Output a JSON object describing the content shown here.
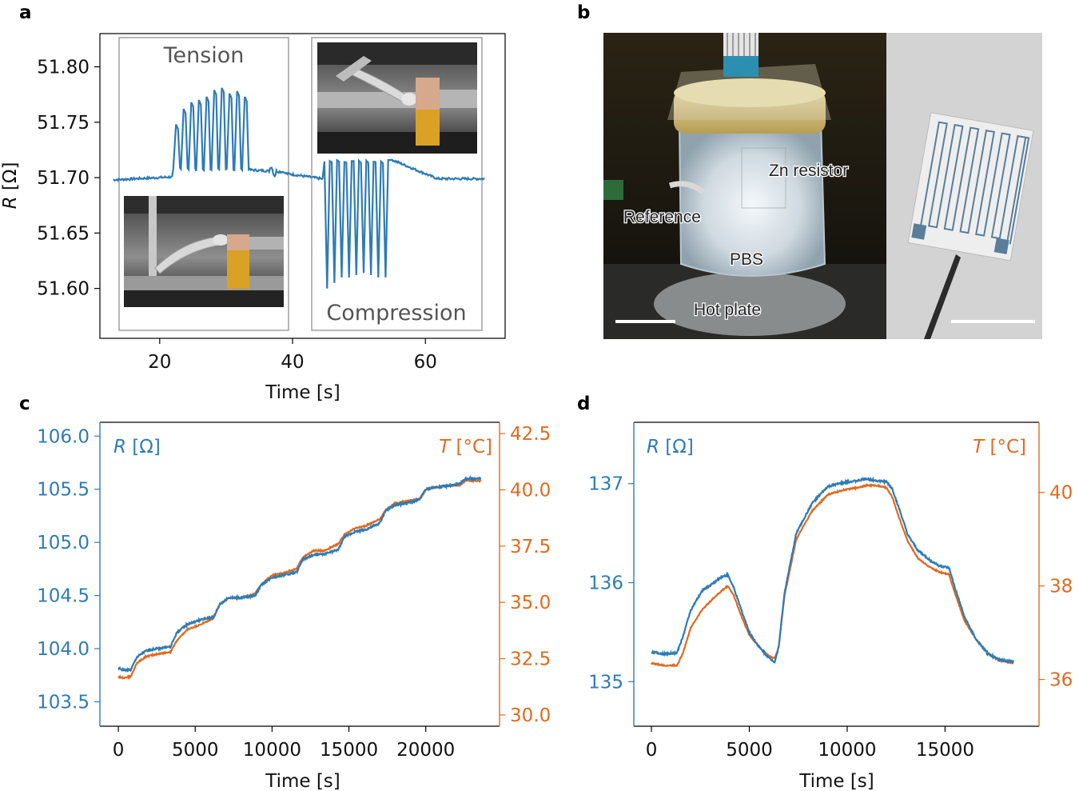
{
  "colors": {
    "blue": "#2f7bb5",
    "orange": "#e06a20",
    "axis": "#000000"
  },
  "panels": {
    "a": {
      "label": "a"
    },
    "b": {
      "label": "b",
      "labels": [
        "Zn resistor",
        "Reference",
        "PBS",
        "Hot plate"
      ]
    },
    "c": {
      "label": "c"
    },
    "d": {
      "label": "d"
    }
  },
  "chart_data": [
    {
      "panel": "a",
      "type": "line",
      "xlabel": "Time [s]",
      "ylabel_italic": "R",
      "ylabel_unit": " [Ω]",
      "xlim": [
        11,
        72
      ],
      "ylim": [
        51.555,
        51.83
      ],
      "xticks": [
        20,
        40,
        60
      ],
      "yticks": [
        51.6,
        51.65,
        51.7,
        51.75,
        51.8
      ],
      "ytick_labels": [
        "51.60",
        "51.65",
        "51.70",
        "51.75",
        "51.80"
      ],
      "annotations": [
        "Tension",
        "Compression"
      ],
      "series": [
        {
          "color": "#2f7bb5",
          "tension_peaks": [
            51.748,
            51.762,
            51.768,
            51.77,
            51.773,
            51.779,
            51.781,
            51.776,
            51.778,
            51.773
          ],
          "compression_troughs": [
            51.6,
            51.605,
            51.61,
            51.61,
            51.612,
            51.614,
            51.612,
            51.61,
            51.61
          ]
        }
      ]
    },
    {
      "panel": "c",
      "type": "line",
      "xlabel": "Time [s]",
      "xlim": [
        -1200,
        24800
      ],
      "xticks": [
        0,
        5000,
        10000,
        15000,
        20000
      ],
      "ylim": [
        103.27,
        106.13
      ],
      "yticks": [
        103.5,
        104.0,
        104.5,
        105.0,
        105.5,
        106.0
      ],
      "ytick_labels": [
        "103.5",
        "104.0",
        "104.5",
        "105.0",
        "105.5",
        "106.0"
      ],
      "y2lim": [
        29.5,
        43.0
      ],
      "y2ticks": [
        30.0,
        32.5,
        35.0,
        37.5,
        40.0,
        42.5
      ],
      "y2tick_labels": [
        "30.0",
        "32.5",
        "35.0",
        "37.5",
        "40.0",
        "42.5"
      ],
      "legend_left_italic": "R",
      "legend_left_unit": " [Ω]",
      "legend_right_italic": "T",
      "legend_right_unit": " [°C]",
      "series": [
        {
          "axis": "left",
          "color": "#2f7bb5",
          "x": [
            0,
            300,
            800,
            1200,
            1800,
            2500,
            3400,
            3800,
            4500,
            5300,
            6200,
            6600,
            7200,
            8000,
            8900,
            9300,
            10000,
            10700,
            11600,
            12000,
            12700,
            13400,
            14300,
            14700,
            15400,
            16100,
            17000,
            17400,
            18000,
            18800,
            19600,
            20000,
            20600,
            21400,
            22200,
            22600,
            23600
          ],
          "y": [
            103.82,
            103.8,
            103.8,
            103.92,
            103.98,
            104.0,
            104.02,
            104.15,
            104.23,
            104.27,
            104.3,
            104.42,
            104.48,
            104.48,
            104.5,
            104.6,
            104.67,
            104.69,
            104.72,
            104.84,
            104.88,
            104.89,
            104.93,
            105.05,
            105.1,
            105.12,
            105.18,
            105.3,
            105.35,
            105.37,
            105.4,
            105.5,
            105.52,
            105.53,
            105.55,
            105.6,
            105.6
          ]
        },
        {
          "axis": "right",
          "color": "#e06a20",
          "x": [
            0,
            300,
            800,
            1200,
            1800,
            2500,
            3400,
            3800,
            4500,
            5300,
            6200,
            6600,
            7200,
            8000,
            8900,
            9300,
            10000,
            10700,
            11600,
            12000,
            12700,
            13400,
            14300,
            14700,
            15400,
            16100,
            17000,
            17400,
            18000,
            18800,
            19600,
            20000,
            20600,
            21400,
            22200,
            22600,
            23600
          ],
          "y": [
            31.7,
            31.65,
            31.7,
            32.3,
            32.6,
            32.7,
            32.8,
            33.3,
            33.8,
            34.0,
            34.3,
            34.9,
            35.2,
            35.2,
            35.4,
            35.8,
            36.2,
            36.3,
            36.5,
            37.0,
            37.3,
            37.3,
            37.6,
            38.0,
            38.3,
            38.4,
            38.7,
            39.1,
            39.4,
            39.5,
            39.6,
            40.0,
            40.1,
            40.2,
            40.2,
            40.4,
            40.4
          ]
        }
      ]
    },
    {
      "panel": "d",
      "type": "line",
      "xlabel": "Time [s]",
      "xlim": [
        -900,
        19800
      ],
      "xticks": [
        0,
        5000,
        10000,
        15000
      ],
      "ylim": [
        134.55,
        137.62
      ],
      "yticks": [
        135,
        136,
        137
      ],
      "ytick_labels": [
        "135",
        "136",
        "137"
      ],
      "y2lim": [
        35.0,
        41.5
      ],
      "y2ticks": [
        36,
        38,
        40
      ],
      "y2tick_labels": [
        "36",
        "38",
        "40"
      ],
      "legend_left_italic": "R",
      "legend_left_unit": " [Ω]",
      "legend_right_italic": "T",
      "legend_right_unit": " [°C]",
      "series": [
        {
          "axis": "left",
          "color": "#2f7bb5",
          "x": [
            0,
            600,
            1300,
            1600,
            2000,
            2600,
            3200,
            3600,
            3900,
            4200,
            4600,
            5000,
            5500,
            6000,
            6300,
            6500,
            6800,
            7400,
            8200,
            9000,
            9800,
            10500,
            11000,
            11500,
            12000,
            12300,
            12700,
            13100,
            13600,
            14200,
            14700,
            15200,
            15500,
            16000,
            16600,
            17200,
            17800,
            18500
          ],
          "y": [
            135.3,
            135.28,
            135.29,
            135.45,
            135.72,
            135.92,
            136.0,
            136.06,
            136.08,
            135.95,
            135.72,
            135.5,
            135.35,
            135.24,
            135.2,
            135.35,
            135.9,
            136.5,
            136.8,
            136.97,
            137.01,
            137.03,
            137.05,
            137.03,
            137.02,
            136.95,
            136.72,
            136.48,
            136.33,
            136.23,
            136.17,
            136.15,
            135.95,
            135.65,
            135.42,
            135.28,
            135.22,
            135.2
          ]
        },
        {
          "axis": "right",
          "color": "#e06a20",
          "x": [
            0,
            600,
            1300,
            1600,
            2000,
            2600,
            3200,
            3600,
            3900,
            4200,
            4600,
            5000,
            5500,
            6000,
            6300,
            6500,
            6800,
            7400,
            8200,
            9000,
            9800,
            10500,
            11000,
            11500,
            12000,
            12300,
            12700,
            13100,
            13600,
            14200,
            14700,
            15200,
            15500,
            16000,
            16600,
            17200,
            17800,
            18500
          ],
          "y": [
            36.35,
            36.3,
            36.3,
            36.55,
            37.1,
            37.5,
            37.75,
            37.9,
            38.0,
            37.8,
            37.35,
            36.95,
            36.7,
            36.5,
            36.45,
            36.7,
            37.8,
            39.0,
            39.6,
            39.95,
            40.05,
            40.1,
            40.15,
            40.15,
            40.1,
            39.9,
            39.4,
            38.95,
            38.6,
            38.4,
            38.3,
            38.25,
            37.85,
            37.25,
            36.85,
            36.55,
            36.4,
            36.35
          ]
        }
      ]
    }
  ]
}
